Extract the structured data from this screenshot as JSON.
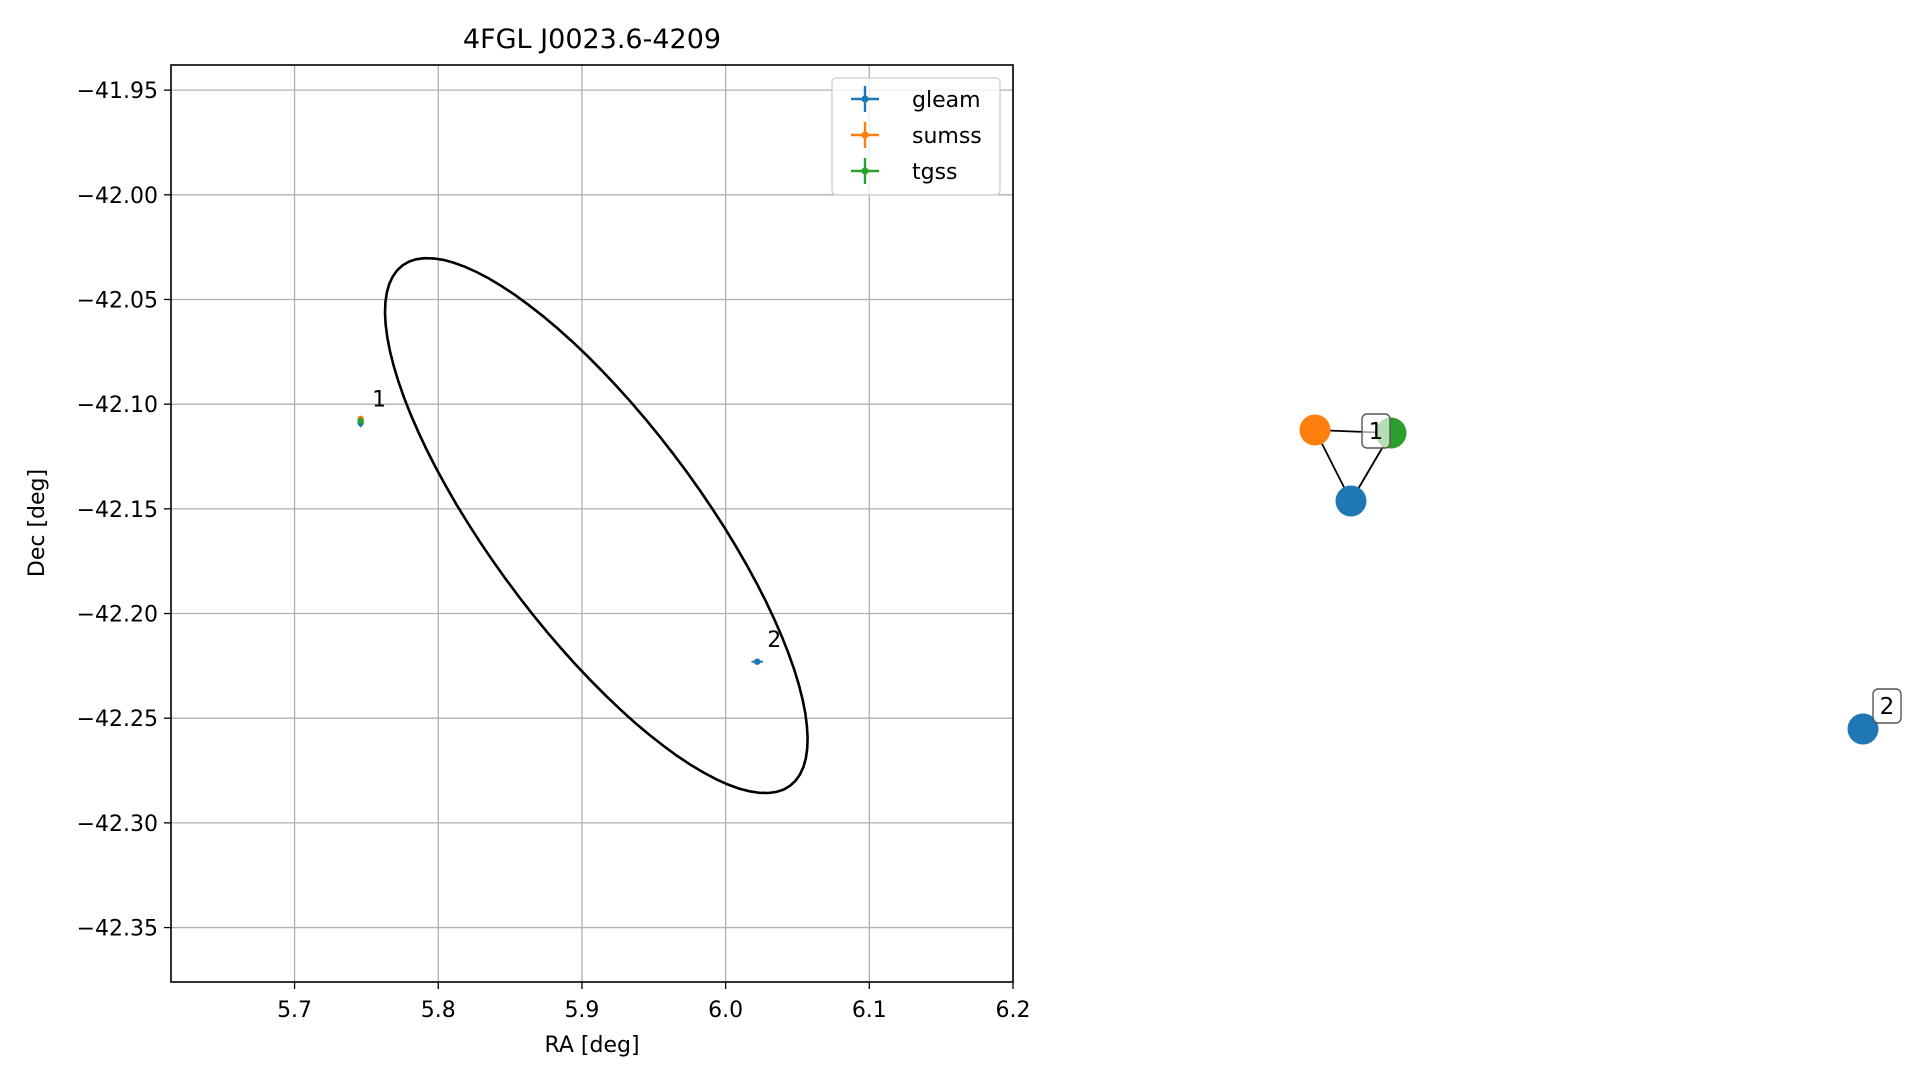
{
  "chart_data": [
    {
      "type": "scatter",
      "title": "4FGL J0023.6-4209",
      "xlabel": "RA [deg]",
      "ylabel": "Dec [deg]",
      "xlim": [
        5.614,
        6.2
      ],
      "ylim": [
        -42.376,
        -41.938
      ],
      "xticks": [
        5.7,
        5.8,
        5.9,
        6.0,
        6.1,
        6.2
      ],
      "xtick_labels": [
        "5.7",
        "5.8",
        "5.9",
        "6.0",
        "6.1",
        "6.2"
      ],
      "yticks": [
        -41.95,
        -42.0,
        -42.05,
        -42.1,
        -42.15,
        -42.2,
        -42.25,
        -42.3,
        -42.35
      ],
      "ytick_labels": [
        "−41.95",
        "−42.00",
        "−42.05",
        "−42.10",
        "−42.15",
        "−42.20",
        "−42.25",
        "−42.30",
        "−42.35"
      ],
      "grid": true,
      "legend_position": "top-right",
      "series": [
        {
          "name": "gleam",
          "color": "#1f77b4",
          "points": [
            {
              "x": 5.746,
              "y": -42.109,
              "xerr": 0.002,
              "yerr": 0.002
            },
            {
              "x": 6.022,
              "y": -42.223,
              "xerr": 0.004,
              "yerr": 0.001
            }
          ]
        },
        {
          "name": "sumss",
          "color": "#ff7f0e",
          "points": [
            {
              "x": 5.746,
              "y": -42.107,
              "xerr": 0.002,
              "yerr": 0.001
            }
          ]
        },
        {
          "name": "tgss",
          "color": "#2ca02c",
          "points": [
            {
              "x": 5.746,
              "y": -42.108,
              "xerr": 0.001,
              "yerr": 0.001
            }
          ]
        }
      ],
      "ellipse": {
        "center": [
          5.91,
          -42.158
        ],
        "rx": 0.185,
        "ry": 0.061,
        "angle_deg": -40
      },
      "annotations": [
        {
          "text": "1",
          "x": 5.754,
          "y": -42.101
        },
        {
          "text": "2",
          "x": 6.029,
          "y": -42.216
        }
      ]
    },
    {
      "type": "network",
      "nodes": [
        {
          "id": "sumss",
          "color": "#ff7f0e"
        },
        {
          "id": "tgss",
          "color": "#2ca02c"
        },
        {
          "id": "gleam-1",
          "color": "#1f77b4"
        },
        {
          "id": "gleam-2",
          "color": "#1f77b4"
        }
      ],
      "edges": [
        [
          "sumss",
          "tgss"
        ],
        [
          "sumss",
          "gleam-1"
        ],
        [
          "tgss",
          "gleam-1"
        ]
      ],
      "labels": [
        {
          "text": "1",
          "group": "sumss-tgss-gleam-1"
        },
        {
          "text": "2",
          "group": "gleam-2"
        }
      ]
    }
  ]
}
